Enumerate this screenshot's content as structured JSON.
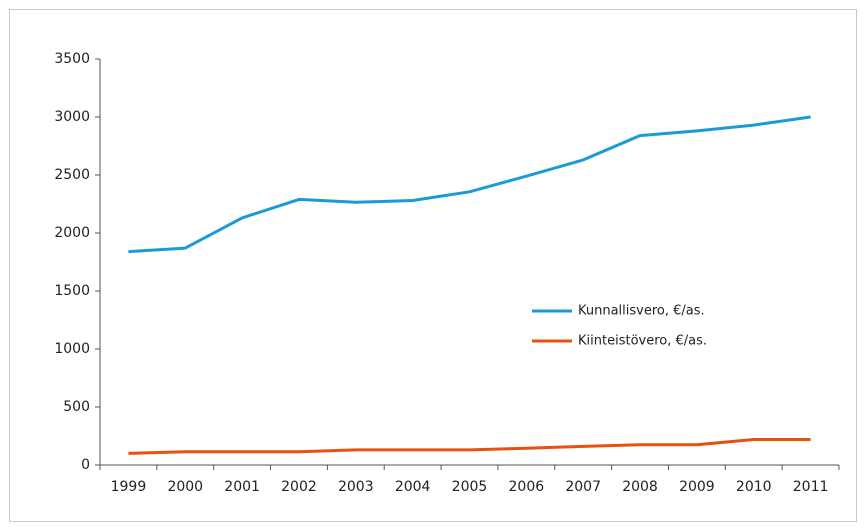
{
  "chart_data": {
    "type": "line",
    "categories": [
      "1999",
      "2000",
      "2001",
      "2002",
      "2003",
      "2004",
      "2005",
      "2006",
      "2007",
      "2008",
      "2009",
      "2010",
      "2011"
    ],
    "series": [
      {
        "name": "Kunnallisvero, €/as.",
        "color": "#1a9bd7",
        "values": [
          1840,
          1870,
          2130,
          2290,
          2265,
          2280,
          2355,
          2490,
          2630,
          2840,
          2880,
          2930,
          3000
        ]
      },
      {
        "name": "Kiinteistövero, €/as.",
        "color": "#e8500f",
        "values": [
          100,
          115,
          115,
          115,
          130,
          130,
          130,
          145,
          160,
          175,
          175,
          220,
          220
        ]
      }
    ],
    "ylim": [
      0,
      3500
    ],
    "yticks": [
      0,
      500,
      1000,
      1500,
      2000,
      2500,
      3000,
      3500
    ]
  }
}
